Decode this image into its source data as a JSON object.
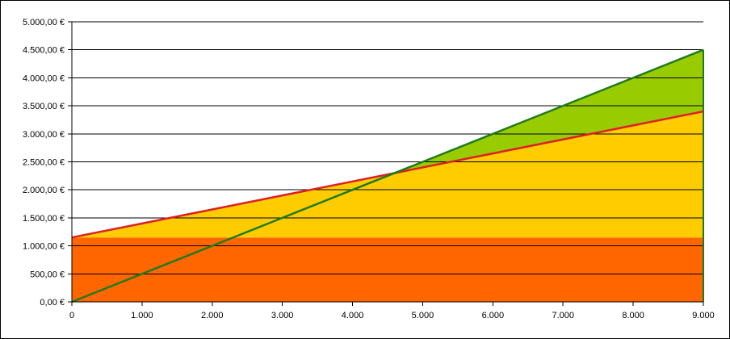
{
  "chart_data": {
    "type": "area",
    "x": [
      0,
      1000,
      2000,
      3000,
      4000,
      5000,
      6000,
      7000,
      8000,
      9000
    ],
    "xlim": [
      0,
      9000
    ],
    "ylim": [
      0,
      5000
    ],
    "xticks": [
      "0",
      "1.000",
      "2.000",
      "3.000",
      "4.000",
      "5.000",
      "6.000",
      "7.000",
      "8.000",
      "9.000"
    ],
    "yticks": [
      "0,00 €",
      "500,00 €",
      "1.000,00 €",
      "1.500,00 €",
      "2.000,00 €",
      "2.500,00 €",
      "3.000,00 €",
      "3.500,00 €",
      "4.000,00 €",
      "4.500,00 €",
      "5.000,00 €"
    ],
    "series": [
      {
        "key": "fixed",
        "style": "area",
        "color": "#ff6600",
        "values": [
          1150,
          1150,
          1150,
          1150,
          1150,
          1150,
          1150,
          1150,
          1150,
          1150
        ]
      },
      {
        "key": "total_costs",
        "style": "line-area",
        "color": "#dd1f26",
        "fill": "#ffcc00",
        "values": [
          1150,
          1400,
          1650,
          1900,
          2150,
          2400,
          2650,
          2900,
          3150,
          3400
        ]
      },
      {
        "key": "revenue",
        "style": "line",
        "color": "#1e7b1e",
        "values": [
          0,
          500,
          1000,
          1500,
          2000,
          2500,
          3000,
          3500,
          4000,
          4500
        ]
      }
    ],
    "profit_fill": "#99cc00",
    "grid": true,
    "title": "",
    "xlabel": "",
    "ylabel": ""
  }
}
